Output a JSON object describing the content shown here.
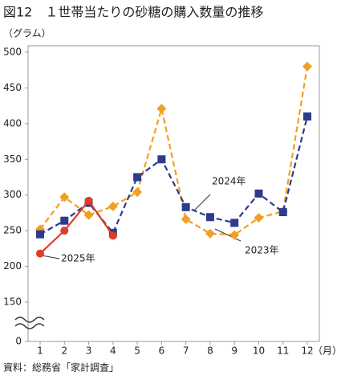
{
  "chart_data": {
    "type": "line",
    "title": "図12　１世帯当たりの砂糖の購入数量の推移",
    "y_label": "（グラム）",
    "x_label": "（月）",
    "source": "資料：総務省「家計調査」",
    "categories": [
      "1",
      "2",
      "3",
      "4",
      "5",
      "6",
      "7",
      "8",
      "9",
      "10",
      "11",
      "12"
    ],
    "series": [
      {
        "name": "2023年",
        "color": "#f0a020",
        "marker": "diamond",
        "dash": true,
        "values": [
          252,
          297,
          272,
          284,
          304,
          421,
          266,
          246,
          244,
          268,
          277,
          480
        ]
      },
      {
        "name": "2024年",
        "color": "#2e3a8c",
        "marker": "square",
        "dash": true,
        "values": [
          245,
          264,
          289,
          247,
          325,
          350,
          283,
          269,
          261,
          302,
          276,
          410
        ]
      },
      {
        "name": "2025年",
        "color": "#e03c28",
        "marker": "circle",
        "dash": false,
        "values": [
          218,
          250,
          292,
          243,
          null,
          null,
          null,
          null,
          null,
          null,
          null,
          null
        ]
      }
    ],
    "ylim": [
      0,
      500
    ],
    "yticks": [
      0,
      150,
      200,
      250,
      300,
      350,
      400,
      450,
      500
    ],
    "axis_break": [
      0,
      150
    ]
  }
}
